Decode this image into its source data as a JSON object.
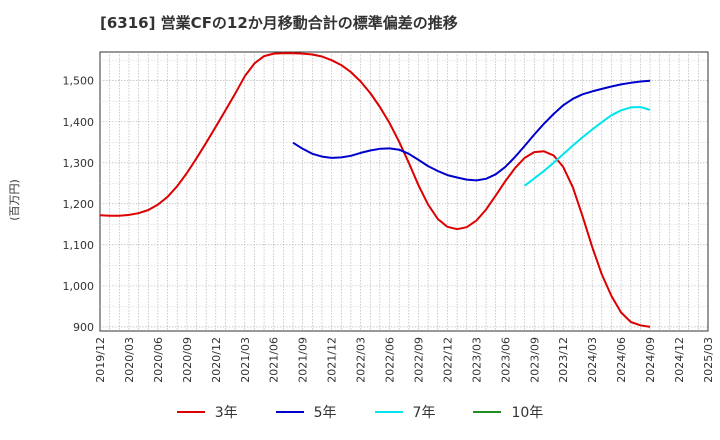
{
  "title": "[6316]  営業CFの12か月移動合計の標準偏差の推移",
  "chart_data": {
    "type": "line",
    "title": "[6316]  営業CFの12か月移動合計の標準偏差の推移",
    "ylabel": "(百万円)",
    "xlabel": "",
    "ylim": [
      890,
      1570
    ],
    "yticks": [
      900,
      1000,
      1100,
      1200,
      1300,
      1400,
      1500
    ],
    "ytick_labels": [
      "900",
      "1,000",
      "1,100",
      "1,200",
      "1,300",
      "1,400",
      "1,500"
    ],
    "xticks": [
      "2019/12",
      "2020/03",
      "2020/06",
      "2020/09",
      "2020/12",
      "2021/03",
      "2021/06",
      "2021/09",
      "2021/12",
      "2022/03",
      "2022/06",
      "2022/09",
      "2022/12",
      "2023/03",
      "2023/06",
      "2023/09",
      "2023/12",
      "2024/03",
      "2024/06",
      "2024/09",
      "2024/12",
      "2025/03"
    ],
    "grid": true,
    "legend_position": "bottom",
    "series": [
      {
        "name": "3年",
        "color": "#dd0000",
        "x": [
          "2019/12",
          "2020/01",
          "2020/02",
          "2020/03",
          "2020/04",
          "2020/05",
          "2020/06",
          "2020/07",
          "2020/08",
          "2020/09",
          "2020/10",
          "2020/11",
          "2020/12",
          "2021/01",
          "2021/02",
          "2021/03",
          "2021/04",
          "2021/05",
          "2021/06",
          "2021/07",
          "2021/08",
          "2021/09",
          "2021/10",
          "2021/11",
          "2021/12",
          "2022/01",
          "2022/02",
          "2022/03",
          "2022/04",
          "2022/05",
          "2022/06",
          "2022/07",
          "2022/08",
          "2022/09",
          "2022/10",
          "2022/11",
          "2022/12",
          "2023/01",
          "2023/02",
          "2023/03",
          "2023/04",
          "2023/05",
          "2023/06",
          "2023/07",
          "2023/08",
          "2023/09",
          "2023/10",
          "2023/11",
          "2023/12",
          "2024/01",
          "2024/02",
          "2024/03",
          "2024/04",
          "2024/05",
          "2024/06",
          "2024/07",
          "2024/08",
          "2024/09"
        ],
        "values": [
          1172,
          1171,
          1171,
          1173,
          1177,
          1185,
          1198,
          1217,
          1243,
          1275,
          1311,
          1349,
          1388,
          1428,
          1468,
          1511,
          1542,
          1560,
          1566,
          1567,
          1567,
          1566,
          1564,
          1559,
          1550,
          1538,
          1521,
          1498,
          1470,
          1436,
          1397,
          1351,
          1300,
          1245,
          1198,
          1163,
          1144,
          1138,
          1143,
          1159,
          1186,
          1220,
          1255,
          1287,
          1312,
          1326,
          1328,
          1318,
          1290,
          1240,
          1170,
          1095,
          1028,
          975,
          935,
          912,
          904,
          900
        ]
      },
      {
        "name": "5年",
        "color": "#0000cc",
        "x": [
          "2021/08",
          "2021/09",
          "2021/10",
          "2021/11",
          "2021/12",
          "2022/01",
          "2022/02",
          "2022/03",
          "2022/04",
          "2022/05",
          "2022/06",
          "2022/07",
          "2022/08",
          "2022/09",
          "2022/10",
          "2022/11",
          "2022/12",
          "2023/01",
          "2023/02",
          "2023/03",
          "2023/04",
          "2023/05",
          "2023/06",
          "2023/07",
          "2023/08",
          "2023/09",
          "2023/10",
          "2023/11",
          "2023/12",
          "2024/01",
          "2024/02",
          "2024/03",
          "2024/04",
          "2024/05",
          "2024/06",
          "2024/07",
          "2024/08",
          "2024/09"
        ],
        "values": [
          1349,
          1334,
          1322,
          1315,
          1312,
          1313,
          1317,
          1324,
          1330,
          1334,
          1335,
          1332,
          1322,
          1307,
          1292,
          1280,
          1270,
          1264,
          1259,
          1257,
          1261,
          1272,
          1290,
          1314,
          1341,
          1369,
          1395,
          1419,
          1440,
          1456,
          1467,
          1474,
          1480,
          1486,
          1491,
          1495,
          1498,
          1500
        ]
      },
      {
        "name": "7年",
        "color": "#00e5ee",
        "x": [
          "2023/08",
          "2023/09",
          "2023/10",
          "2023/11",
          "2023/12",
          "2024/01",
          "2024/02",
          "2024/03",
          "2024/04",
          "2024/05",
          "2024/06",
          "2024/07",
          "2024/08",
          "2024/09"
        ],
        "values": [
          1244,
          1262,
          1280,
          1300,
          1321,
          1342,
          1362,
          1381,
          1399,
          1416,
          1428,
          1435,
          1436,
          1429
        ]
      },
      {
        "name": "10年",
        "color": "#228b22",
        "x": [],
        "values": []
      }
    ]
  }
}
